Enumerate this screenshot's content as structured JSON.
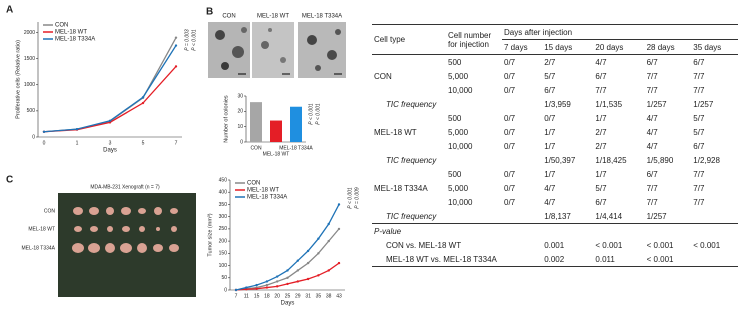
{
  "panel_labels": [
    "A",
    "B",
    "C"
  ],
  "micrographs": {
    "labels": [
      "CON",
      "MEL-18 WT",
      "MEL-18 T334A"
    ]
  },
  "xenograft": {
    "title": "MDA-MB-231 Xenograft (n = 7)",
    "row_labels": [
      "CON",
      "MEL-18 WT",
      "MEL-18 T334A"
    ]
  },
  "chart_data": [
    {
      "type": "line",
      "x_label": "Days",
      "y_label": "Proliferative cells (Relative ratio)",
      "categories": [
        "0",
        "1",
        "3",
        "5",
        "7"
      ],
      "ylim": [
        0,
        2200
      ],
      "yticks": [
        0,
        500,
        1000,
        1500,
        2000
      ],
      "grid": false,
      "legend": "upper-left",
      "series": [
        {
          "name": "CON",
          "color": "#888888",
          "values": [
            100,
            150,
            300,
            750,
            1900
          ]
        },
        {
          "name": "MEL-18 WT",
          "color": "#e41e26",
          "values": [
            100,
            140,
            280,
            650,
            1350
          ]
        },
        {
          "name": "MEL-18 T334A",
          "color": "#1f73b7",
          "values": [
            100,
            150,
            310,
            760,
            1750
          ]
        }
      ],
      "annotations": [
        "P = 0.003",
        "P < 0.001"
      ]
    },
    {
      "type": "bar",
      "y_label": "Number of colonies",
      "categories": [
        "CON",
        "MEL-18 WT",
        "MEL-18 T334A"
      ],
      "values": [
        26,
        14,
        23
      ],
      "colors": [
        "#a6a6a6",
        "#e41e26",
        "#1f8fe0"
      ],
      "ylim": [
        0,
        30
      ],
      "yticks": [
        0,
        10,
        20,
        30
      ],
      "grid": false,
      "annotations": [
        "P < 0.001",
        "P < 0.001"
      ]
    },
    {
      "type": "line",
      "x_label": "Days",
      "y_label": "Tumor size (mm³)",
      "categories": [
        "7",
        "11",
        "15",
        "18",
        "20",
        "25",
        "29",
        "31",
        "35",
        "38",
        "43"
      ],
      "ylim": [
        0,
        450
      ],
      "yticks": [
        0,
        50,
        100,
        150,
        200,
        250,
        300,
        350,
        400,
        450
      ],
      "grid": false,
      "legend": "upper-left",
      "series": [
        {
          "name": "CON",
          "color": "#888888",
          "values": [
            0,
            5,
            10,
            20,
            35,
            50,
            80,
            110,
            150,
            200,
            250
          ]
        },
        {
          "name": "MEL-18 WT",
          "color": "#e41e26",
          "values": [
            0,
            3,
            5,
            10,
            15,
            25,
            35,
            45,
            60,
            80,
            110
          ]
        },
        {
          "name": "MEL-18 T334A",
          "color": "#1f73b7",
          "values": [
            0,
            10,
            20,
            35,
            55,
            80,
            120,
            160,
            210,
            270,
            350
          ]
        }
      ],
      "annotations": [
        "P < 0.001",
        "P = 0.009"
      ]
    }
  ],
  "table": {
    "headers": {
      "cell_type": "Cell type",
      "cell_number": "Cell number for injection",
      "days": "Days after injection",
      "day_cols": [
        "7 days",
        "15 days",
        "20 days",
        "28 days",
        "35 days"
      ]
    },
    "groups": [
      {
        "name": "CON",
        "rows": [
          [
            "500",
            "0/7",
            "2/7",
            "4/7",
            "6/7",
            "6/7"
          ],
          [
            "5,000",
            "0/7",
            "5/7",
            "6/7",
            "7/7",
            "7/7"
          ],
          [
            "10,000",
            "0/7",
            "6/7",
            "7/7",
            "7/7",
            "7/7"
          ]
        ],
        "tic_label": "TIC frequency",
        "tic": [
          null,
          "1/3,959",
          "1/1,535",
          "1/257",
          "1/257"
        ]
      },
      {
        "name": "MEL-18 WT",
        "rows": [
          [
            "500",
            "0/7",
            "0/7",
            "1/7",
            "4/7",
            "5/7"
          ],
          [
            "5,000",
            "0/7",
            "1/7",
            "2/7",
            "4/7",
            "5/7"
          ],
          [
            "10,000",
            "0/7",
            "1/7",
            "2/7",
            "4/7",
            "6/7"
          ]
        ],
        "tic_label": "TIC frequency",
        "tic": [
          null,
          "1/50,397",
          "1/18,425",
          "1/5,890",
          "1/2,928"
        ]
      },
      {
        "name": "MEL-18 T334A",
        "rows": [
          [
            "500",
            "0/7",
            "1/7",
            "1/7",
            "6/7",
            "7/7"
          ],
          [
            "5,000",
            "0/7",
            "4/7",
            "5/7",
            "7/7",
            "7/7"
          ],
          [
            "10,000",
            "0/7",
            "4/7",
            "6/7",
            "7/7",
            "7/7"
          ]
        ],
        "tic_label": "TIC frequency",
        "tic": [
          null,
          "1/8,137",
          "1/4,414",
          "1/257",
          null
        ]
      }
    ],
    "pvalue": {
      "title": "P-value",
      "rows": [
        {
          "label": "CON vs. MEL-18 WT",
          "values": [
            null,
            "0.001",
            "< 0.001",
            "< 0.001",
            "< 0.001"
          ]
        },
        {
          "label": "MEL-18 WT vs. MEL-18 T334A",
          "values": [
            null,
            "0.002",
            "0.011",
            "< 0.001",
            null
          ]
        }
      ]
    }
  }
}
